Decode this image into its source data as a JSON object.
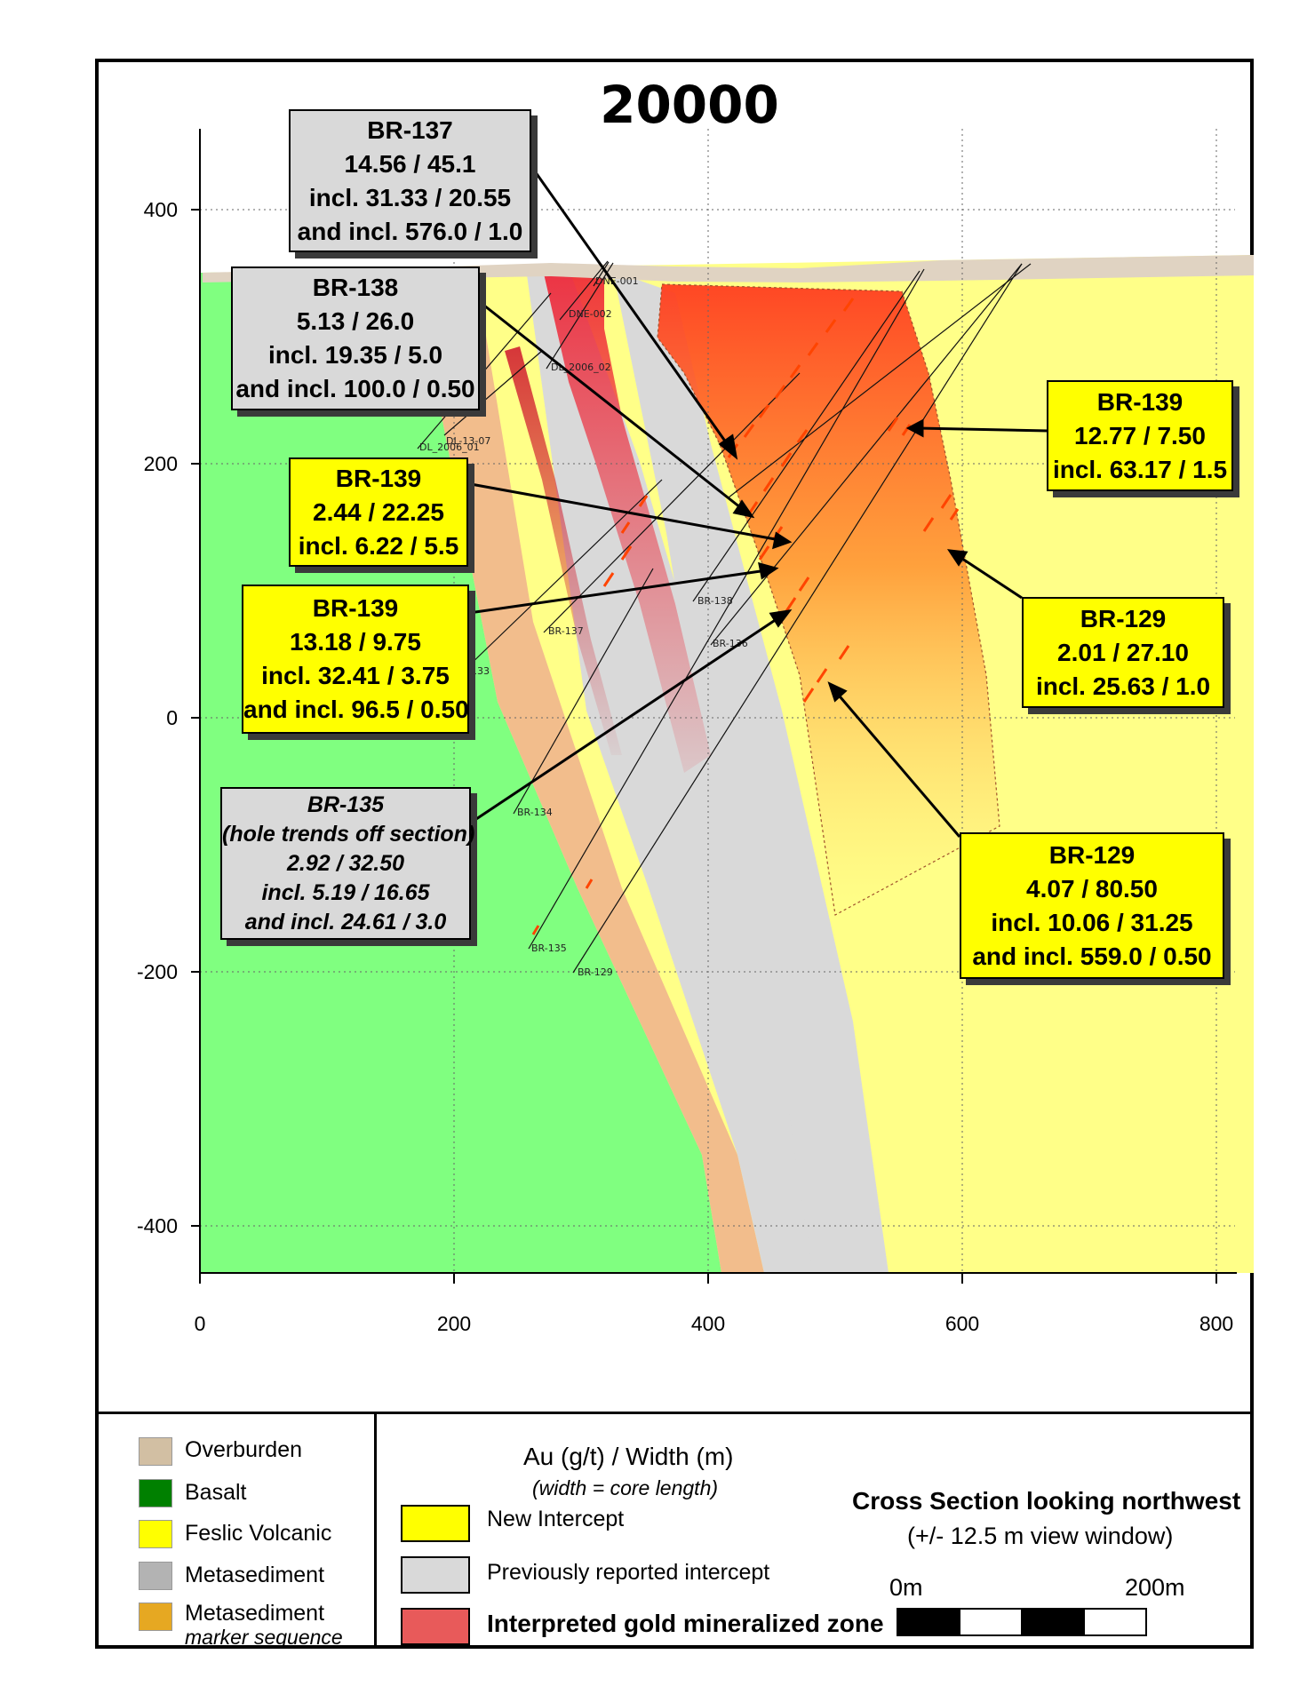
{
  "title": "20000",
  "axes": {
    "y_ticks": [
      "400",
      "200",
      "0",
      "-200",
      "-400"
    ],
    "x_ticks": [
      "0",
      "200",
      "400",
      "600",
      "800"
    ]
  },
  "callouts": {
    "br137": [
      "BR-137",
      "14.56 / 45.1",
      "incl. 31.33 / 20.55",
      "and incl. 576.0 / 1.0"
    ],
    "br138": [
      "BR-138",
      "5.13 / 26.0",
      "incl. 19.35 / 5.0",
      "and incl. 100.0 / 0.50"
    ],
    "br139_a": [
      "BR-139",
      "2.44 / 22.25",
      "incl. 6.22 / 5.5"
    ],
    "br139_b": [
      "BR-139",
      "13.18 / 9.75",
      "incl. 32.41 / 3.75",
      "and incl. 96.5 / 0.50"
    ],
    "br135": [
      "BR-135",
      "(hole trends off section)",
      "2.92 / 32.50",
      "incl. 5.19 / 16.65",
      "and incl. 24.61 / 3.0"
    ],
    "br139_c": [
      "BR-139",
      "12.77 / 7.50",
      "incl. 63.17 / 1.5"
    ],
    "br129_a": [
      "BR-129",
      "2.01 / 27.10",
      "incl. 25.63 / 1.0"
    ],
    "br129_b": [
      "BR-129",
      "4.07 / 80.50",
      "incl. 10.06 / 31.25",
      "and incl. 559.0 / 0.50"
    ]
  },
  "hole_labels": {
    "dne001": "DNE-001",
    "dne002": "DNE-002",
    "dl2006_02": "DL_2006_02",
    "dl2006_01": "DL_2006_01",
    "dl13_07": "DL-13-07",
    "br138": "BR-138",
    "br137": "BR-137",
    "br136": "BR-136",
    "br133": "133",
    "br134": "BR-134",
    "br135": "BR-135",
    "br129": "BR-129"
  },
  "legend": {
    "lithology": [
      {
        "label": "Overburden",
        "color": "#d2bfa3"
      },
      {
        "label": "Basalt",
        "color": "#008000"
      },
      {
        "label": "Feslic Volcanic",
        "color": "#ffff00"
      },
      {
        "label": "Metasediment",
        "color": "#b3b3b3"
      },
      {
        "label": "Metasediment",
        "sub": "marker sequence",
        "color": "#e6a822"
      }
    ],
    "intercept_header": "Au (g/t) / Width (m)",
    "intercept_sub": "(width = core length)",
    "new_intercept": "New Intercept",
    "previous_intercept": "Previously reported  intercept",
    "mineralized_zone": "Interpreted gold mineralized zone",
    "section_title": "Cross Section looking northwest",
    "section_sub": "(+/- 12.5 m view window)",
    "scale_start": "0m",
    "scale_end": "200m"
  },
  "colors": {
    "basalt": "#80ff80",
    "felsic": "#ffff88",
    "metased": "#d9d9d9",
    "marker": "#f2bd8c",
    "overburden": "#e0d3c2",
    "zone": "#ff3b1f",
    "new_intercept": "#ffff00",
    "previous_intercept": "#d9d9d9",
    "zone_legend": "#e85a5a"
  }
}
